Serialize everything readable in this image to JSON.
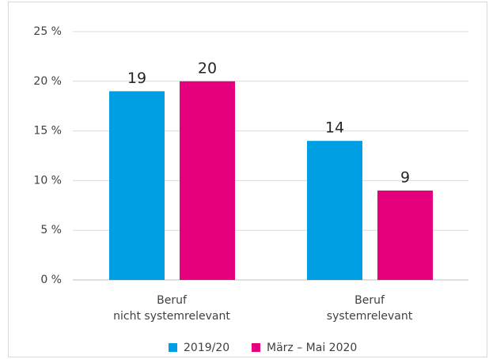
{
  "chart_data": {
    "type": "bar",
    "categories": [
      "Beruf\nnicht systemrelevant",
      "Beruf\nsystemrelevant"
    ],
    "series": [
      {
        "name": "2019/20",
        "color": "#009fe3",
        "values": [
          19,
          14
        ]
      },
      {
        "name": "März – Mai 2020",
        "color": "#e5007d",
        "values": [
          20,
          9
        ]
      }
    ],
    "ylim": [
      0,
      25
    ],
    "yticks": [
      {
        "value": 0,
        "label": "0 %"
      },
      {
        "value": 5,
        "label": "5 %"
      },
      {
        "value": 10,
        "label": "10 %"
      },
      {
        "value": 15,
        "label": "15 %"
      },
      {
        "value": 20,
        "label": "20 %"
      },
      {
        "value": 25,
        "label": "25 %"
      }
    ],
    "grid": true,
    "legend": "bottom"
  }
}
